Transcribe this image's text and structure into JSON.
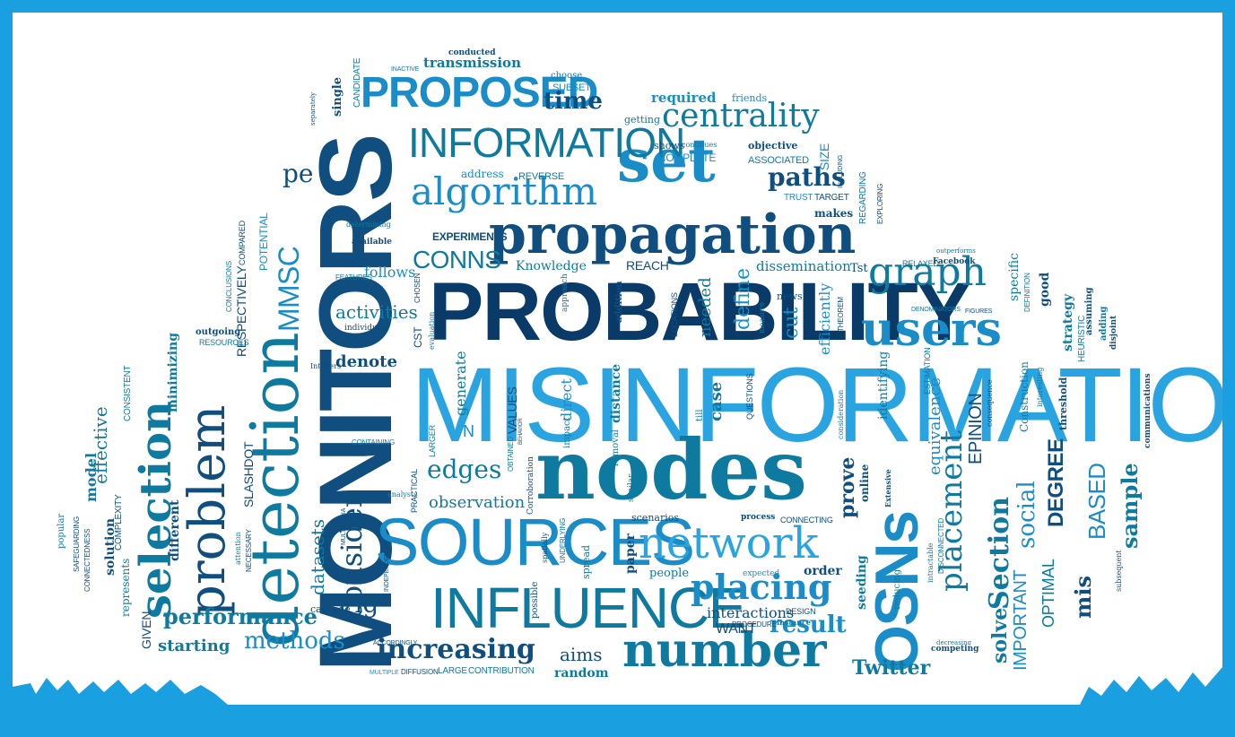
{
  "palette": {
    "frame": "#1aa0e0",
    "paper": "#ffffff",
    "navy": "#0f4e7e",
    "teal": "#0f7aa0",
    "blue": "#1a8cc8",
    "light_blue": "#2aa4e0",
    "deep": "#0a3a68"
  },
  "cloud_shape": "cloud",
  "words": [
    {
      "id": "misinformation",
      "text": "MISINFORMATION",
      "color": "light_blue"
    },
    {
      "id": "probability",
      "text": "PROBABILITY",
      "color": "deep"
    },
    {
      "id": "monitors",
      "text": "MONITORS",
      "color": "navy"
    },
    {
      "id": "nodes",
      "text": "nodes",
      "color": "teal"
    },
    {
      "id": "sources",
      "text": "SOURCES",
      "color": "blue"
    },
    {
      "id": "propagation",
      "text": "propagation",
      "color": "navy"
    },
    {
      "id": "influence",
      "text": "INFLUENCE",
      "color": "teal"
    },
    {
      "id": "detection",
      "text": "detection",
      "color": "teal"
    },
    {
      "id": "osns",
      "text": "OSNs",
      "color": "blue"
    },
    {
      "id": "set",
      "text": "set",
      "color": "blue"
    },
    {
      "id": "network",
      "text": "network",
      "color": "light_blue"
    },
    {
      "id": "users",
      "text": "users",
      "color": "blue"
    },
    {
      "id": "number",
      "text": "number",
      "color": "teal"
    },
    {
      "id": "proposed",
      "text": "PROPOSED",
      "color": "blue"
    },
    {
      "id": "information",
      "text": "INFORMATION",
      "color": "teal"
    },
    {
      "id": "algorithm",
      "text": "algorithm",
      "color": "blue"
    },
    {
      "id": "centrality",
      "text": "centrality",
      "color": "teal"
    },
    {
      "id": "graph",
      "text": "graph",
      "color": "teal"
    },
    {
      "id": "problem",
      "text": "problem",
      "color": "navy"
    },
    {
      "id": "selection",
      "text": "selection",
      "color": "teal"
    },
    {
      "id": "placing",
      "text": "placing",
      "color": "blue"
    },
    {
      "id": "placement",
      "text": "placement",
      "color": "teal"
    },
    {
      "id": "consider",
      "text": "consider",
      "color": "navy"
    },
    {
      "id": "increasing",
      "text": "increasing",
      "color": "navy"
    },
    {
      "id": "mmsc",
      "text": "MMSC",
      "color": "blue"
    },
    {
      "id": "pe",
      "text": "pe",
      "color": "navy"
    },
    {
      "id": "paths",
      "text": "paths",
      "color": "navy"
    },
    {
      "id": "conns",
      "text": "CONNS",
      "color": "teal"
    },
    {
      "id": "edges",
      "text": "edges",
      "color": "teal"
    },
    {
      "id": "performance",
      "text": "performance",
      "color": "teal"
    },
    {
      "id": "methods",
      "text": "methods",
      "color": "blue"
    },
    {
      "id": "starting",
      "text": "starting",
      "color": "teal"
    },
    {
      "id": "time",
      "text": "time",
      "color": "navy"
    },
    {
      "id": "transmission",
      "text": "transmission",
      "color": "teal"
    },
    {
      "id": "twitter",
      "text": "Twitter",
      "color": "teal"
    },
    {
      "id": "result",
      "text": "result",
      "color": "blue"
    },
    {
      "id": "section",
      "text": "Section",
      "color": "teal"
    },
    {
      "id": "social",
      "text": "social",
      "color": "blue"
    },
    {
      "id": "degree",
      "text": "DEGREE",
      "color": "navy"
    },
    {
      "id": "based",
      "text": "BASED",
      "color": "blue"
    },
    {
      "id": "sample",
      "text": "sample",
      "color": "teal"
    },
    {
      "id": "mis",
      "text": "mis",
      "color": "navy"
    },
    {
      "id": "solve",
      "text": "solve",
      "color": "teal"
    },
    {
      "id": "prove",
      "text": "prove",
      "color": "navy"
    },
    {
      "id": "important",
      "text": "IMPORTANT",
      "color": "blue"
    },
    {
      "id": "optimal",
      "text": "OPTIMAL",
      "color": "teal"
    },
    {
      "id": "epinion",
      "text": "EPINION",
      "color": "navy"
    },
    {
      "id": "equivalence",
      "text": "equivalence",
      "color": "blue"
    },
    {
      "id": "fig",
      "text": "Fig",
      "color": "navy"
    },
    {
      "id": "datasets",
      "text": "datasets",
      "color": "teal"
    },
    {
      "id": "activities",
      "text": "activities",
      "color": "teal"
    },
    {
      "id": "follows",
      "text": "follows",
      "color": "blue"
    },
    {
      "id": "denote",
      "text": "denote",
      "color": "navy"
    },
    {
      "id": "generate",
      "text": "generate",
      "color": "teal"
    },
    {
      "id": "observation",
      "text": "observation",
      "color": "teal"
    },
    {
      "id": "aims",
      "text": "aims",
      "color": "navy"
    },
    {
      "id": "random",
      "text": "random",
      "color": "teal"
    },
    {
      "id": "interactions",
      "text": "interactions",
      "color": "navy"
    },
    {
      "id": "want",
      "text": "WANT",
      "color": "navy"
    },
    {
      "id": "knowledge",
      "text": "Knowledge",
      "color": "teal"
    },
    {
      "id": "reach",
      "text": "REACH",
      "color": "navy"
    },
    {
      "id": "dissemination",
      "text": "dissemination",
      "color": "teal"
    },
    {
      "id": "tst",
      "text": "Tst",
      "color": "navy"
    },
    {
      "id": "define",
      "text": "define",
      "color": "blue"
    },
    {
      "id": "needed",
      "text": "needed",
      "color": "teal"
    },
    {
      "id": "cut",
      "text": "cut",
      "color": "blue"
    },
    {
      "id": "efficiently",
      "text": "efficiently",
      "color": "blue"
    },
    {
      "id": "distance",
      "text": "distance",
      "color": "teal"
    },
    {
      "id": "case",
      "text": "case",
      "color": "teal"
    },
    {
      "id": "direct",
      "text": "direct",
      "color": "blue"
    },
    {
      "id": "values",
      "text": "VALUES",
      "color": "navy"
    },
    {
      "id": "experiments",
      "text": "EXPERIMENTS",
      "color": "navy"
    },
    {
      "id": "required",
      "text": "required",
      "color": "blue"
    },
    {
      "id": "friends",
      "text": "friends",
      "color": "blue"
    },
    {
      "id": "complete",
      "text": "COMPLETE",
      "color": "blue"
    },
    {
      "id": "associated",
      "text": "ASSOCIATED",
      "color": "teal"
    },
    {
      "id": "objective",
      "text": "objective",
      "color": "navy"
    },
    {
      "id": "size",
      "text": "SIZE",
      "color": "blue"
    },
    {
      "id": "address",
      "text": "address",
      "color": "blue"
    },
    {
      "id": "reverse",
      "text": "REVERSE",
      "color": "teal"
    },
    {
      "id": "trust",
      "text": "TRUST",
      "color": "blue"
    },
    {
      "id": "target",
      "text": "TARGET",
      "color": "navy"
    },
    {
      "id": "makes",
      "text": "makes",
      "color": "navy"
    },
    {
      "id": "regarding",
      "text": "REGARDING",
      "color": "teal"
    },
    {
      "id": "exploring",
      "text": "EXPLORING",
      "color": "navy"
    },
    {
      "id": "strategy",
      "text": "strategy",
      "color": "teal"
    },
    {
      "id": "good",
      "text": "good",
      "color": "navy"
    },
    {
      "id": "specific",
      "text": "specific",
      "color": "teal"
    },
    {
      "id": "threshold",
      "text": "threshold",
      "color": "navy"
    },
    {
      "id": "heuristic",
      "text": "HEURISTIC",
      "color": "teal"
    },
    {
      "id": "construction",
      "text": "Construction",
      "color": "teal"
    },
    {
      "id": "identifying",
      "text": "identifying",
      "color": "teal"
    },
    {
      "id": "online",
      "text": "online",
      "color": "navy"
    },
    {
      "id": "seeding",
      "text": "seeding",
      "color": "teal"
    },
    {
      "id": "order",
      "text": "order",
      "color": "navy"
    },
    {
      "id": "people",
      "text": "people",
      "color": "teal"
    },
    {
      "id": "scenarios",
      "text": "scenarios",
      "color": "navy"
    },
    {
      "id": "paper",
      "text": "paper",
      "color": "navy"
    },
    {
      "id": "spread",
      "text": "spread",
      "color": "teal"
    },
    {
      "id": "cascade",
      "text": "cascade",
      "color": "navy"
    },
    {
      "id": "model",
      "text": "model",
      "color": "teal"
    },
    {
      "id": "effective",
      "text": "effective",
      "color": "teal"
    },
    {
      "id": "different",
      "text": "different",
      "color": "navy"
    },
    {
      "id": "minimizing",
      "text": "minimizing",
      "color": "teal"
    },
    {
      "id": "solution",
      "text": "solution",
      "color": "navy"
    },
    {
      "id": "given",
      "text": "GIVEN",
      "color": "navy"
    },
    {
      "id": "represents",
      "text": "represents",
      "color": "teal"
    },
    {
      "id": "popular",
      "text": "popular",
      "color": "teal"
    },
    {
      "id": "slashdot",
      "text": "SLASHDOT",
      "color": "navy"
    },
    {
      "id": "respectively",
      "text": "RESPECTIVELY",
      "color": "navy"
    },
    {
      "id": "potential",
      "text": "POTENTIAL",
      "color": "blue"
    },
    {
      "id": "compared",
      "text": "COMPARED",
      "color": "navy"
    },
    {
      "id": "complexity",
      "text": "COMPLEXITY",
      "color": "navy"
    },
    {
      "id": "consistent",
      "text": "CONSISTENT",
      "color": "teal"
    },
    {
      "id": "outgoing",
      "text": "outgoing",
      "color": "navy"
    },
    {
      "id": "resources",
      "text": "RESOURCES",
      "color": "teal"
    },
    {
      "id": "available",
      "text": "available",
      "color": "navy"
    },
    {
      "id": "determining",
      "text": "determining",
      "color": "teal"
    },
    {
      "id": "features",
      "text": "FEATURES",
      "color": "teal"
    },
    {
      "id": "individuals",
      "text": "individuals",
      "color": "navy"
    },
    {
      "id": "integers",
      "text": "Integers",
      "color": "navy"
    },
    {
      "id": "containing",
      "text": "CONTAINING",
      "color": "teal"
    },
    {
      "id": "cst",
      "text": "CST",
      "color": "navy"
    },
    {
      "id": "larger",
      "text": "LARGER",
      "color": "teal"
    },
    {
      "id": "practical",
      "text": "PRACTICAL",
      "color": "navy"
    },
    {
      "id": "large",
      "text": "LARGE",
      "color": "teal"
    },
    {
      "id": "contribution",
      "text": "CONTRIBUTION",
      "color": "teal"
    },
    {
      "id": "multiple",
      "text": "MULTIPLE",
      "color": "blue"
    },
    {
      "id": "diffusion",
      "text": "DIFFUSION",
      "color": "navy"
    },
    {
      "id": "procedure",
      "text": "PROCEDURE",
      "color": "navy"
    },
    {
      "id": "instance",
      "text": "instance",
      "color": "teal"
    },
    {
      "id": "design",
      "text": "DESIGN",
      "color": "navy"
    },
    {
      "id": "expected",
      "text": "expected",
      "color": "blue"
    },
    {
      "id": "connecting",
      "text": "CONNECTING",
      "color": "navy"
    },
    {
      "id": "process",
      "text": "process",
      "color": "navy"
    },
    {
      "id": "decreasing",
      "text": "decreasing",
      "color": "teal"
    },
    {
      "id": "competing",
      "text": "competing",
      "color": "navy"
    },
    {
      "id": "questions",
      "text": "QUESTIONS",
      "color": "navy"
    },
    {
      "id": "locations",
      "text": "LOCATIONS",
      "color": "navy"
    },
    {
      "id": "news",
      "text": "news",
      "color": "navy"
    },
    {
      "id": "theorem",
      "text": "THEOREM",
      "color": "navy"
    },
    {
      "id": "measure",
      "text": "measure",
      "color": "teal"
    },
    {
      "id": "relaxed",
      "text": "RELAXED",
      "color": "teal"
    },
    {
      "id": "facebook",
      "text": "Facebook",
      "color": "navy"
    },
    {
      "id": "outperforms",
      "text": "outperforms",
      "color": "teal"
    },
    {
      "id": "figures",
      "text": "FIGURES",
      "color": "navy"
    },
    {
      "id": "denominators",
      "text": "DENOMINATORS",
      "color": "teal"
    },
    {
      "id": "definition",
      "text": "DEFINITION",
      "color": "teal"
    },
    {
      "id": "assuming",
      "text": "assuming",
      "color": "navy"
    },
    {
      "id": "adding",
      "text": "adding",
      "color": "teal"
    },
    {
      "id": "disjoint",
      "text": "disjoint",
      "color": "navy"
    },
    {
      "id": "communications",
      "text": "communications",
      "color": "navy"
    },
    {
      "id": "subsequent",
      "text": "subsequent",
      "color": "navy"
    },
    {
      "id": "estimation",
      "text": "ESTIMATION",
      "color": "teal"
    },
    {
      "id": "extensive",
      "text": "Extensive",
      "color": "navy"
    },
    {
      "id": "disconnected",
      "text": "DISCONNECTED",
      "color": "teal"
    },
    {
      "id": "intractable",
      "text": "intractable",
      "color": "teal"
    },
    {
      "id": "reducing",
      "text": "reducing",
      "color": "teal"
    },
    {
      "id": "consideration",
      "text": "consideration",
      "color": "teal"
    },
    {
      "id": "inactive",
      "text": "INACTIVE",
      "color": "teal"
    },
    {
      "id": "conducted",
      "text": "conducted",
      "color": "navy"
    },
    {
      "id": "choose",
      "text": "choose",
      "color": "teal"
    },
    {
      "id": "subset",
      "text": "SUBSET",
      "color": "blue"
    },
    {
      "id": "single",
      "text": "single",
      "color": "navy"
    },
    {
      "id": "candidate",
      "text": "CANDIDATE",
      "color": "teal"
    },
    {
      "id": "getting",
      "text": "getting",
      "color": "teal"
    },
    {
      "id": "shows",
      "text": "shows",
      "color": "navy"
    },
    {
      "id": "continues",
      "text": "continues",
      "color": "teal"
    },
    {
      "id": "including",
      "text": "INCLUDING",
      "color": "navy"
    },
    {
      "id": "chosen",
      "text": "CHOSEN",
      "color": "navy"
    },
    {
      "id": "approach",
      "text": "approach",
      "color": "teal"
    },
    {
      "id": "evaluation",
      "text": "evaluation",
      "color": "teal"
    },
    {
      "id": "addition",
      "text": "addition",
      "color": "navy"
    },
    {
      "id": "obtained",
      "text": "OBTAINED",
      "color": "teal"
    },
    {
      "id": "behavior",
      "text": "BEHAVIOR",
      "color": "navy"
    },
    {
      "id": "impact",
      "text": "impact",
      "color": "teal"
    },
    {
      "id": "removal",
      "text": "removal",
      "color": "teal"
    },
    {
      "id": "corroboration",
      "text": "Corroboration",
      "color": "navy"
    },
    {
      "id": "similar",
      "text": "similar",
      "color": "teal"
    },
    {
      "id": "analysts",
      "text": "analysts",
      "color": "teal"
    },
    {
      "id": "necessary",
      "text": "NECESSARY",
      "color": "navy"
    },
    {
      "id": "attention",
      "text": "attention",
      "color": "teal"
    },
    {
      "id": "safeguarding",
      "text": "SAFEGUARDING",
      "color": "navy"
    },
    {
      "id": "connectedness",
      "text": "CONNECTEDNESS",
      "color": "navy"
    },
    {
      "id": "underlying",
      "text": "UNDERLYING",
      "color": "teal"
    },
    {
      "id": "spatially",
      "text": "spatially",
      "color": "navy"
    },
    {
      "id": "independently",
      "text": "INDEPENDENTLY",
      "color": "navy"
    },
    {
      "id": "accordingly",
      "text": "ACCORDINGLY",
      "color": "navy"
    },
    {
      "id": "possible",
      "text": "possible",
      "color": "navy"
    },
    {
      "id": "till",
      "text": "till",
      "color": "teal"
    },
    {
      "id": "n",
      "text": "N",
      "color": "blue"
    },
    {
      "id": "conclusions",
      "text": "CONCLUSIONS",
      "color": "teal"
    },
    {
      "id": "multimedia",
      "text": "MULTIMEDIA",
      "color": "navy"
    },
    {
      "id": "interesting",
      "text": "interesting",
      "color": "teal"
    },
    {
      "id": "separately",
      "text": "separately",
      "color": "navy"
    },
    {
      "id": "consequence",
      "text": "consequence",
      "color": "navy"
    }
  ]
}
